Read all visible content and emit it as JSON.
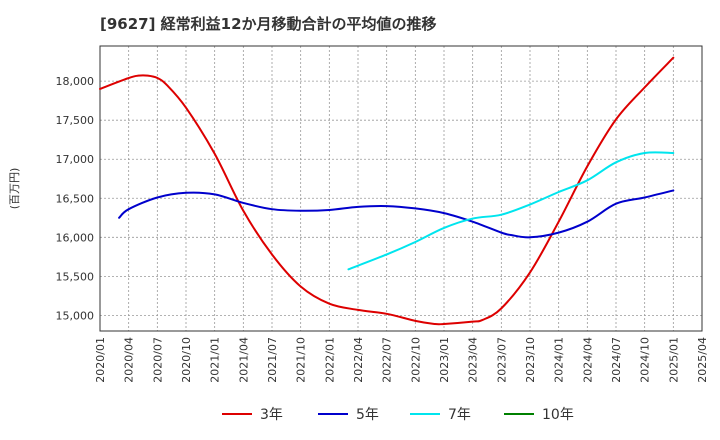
{
  "chart_data": {
    "type": "line",
    "title": "[9627]  経常利益12か月移動合計の平均値の推移",
    "ylabel": "(百万円)",
    "xlabel": "",
    "ylim": [
      14800,
      18450
    ],
    "yticks": [
      15000,
      15500,
      16000,
      16500,
      17000,
      17500,
      18000
    ],
    "ytick_labels": [
      "15,000",
      "15,500",
      "16,000",
      "16,500",
      "17,000",
      "17,500",
      "18,000"
    ],
    "xlim": [
      "2020-01",
      "2025-04"
    ],
    "xtick_labels": [
      "2020/01",
      "2020/04",
      "2020/07",
      "2020/10",
      "2021/01",
      "2021/04",
      "2021/07",
      "2021/10",
      "2022/01",
      "2022/04",
      "2022/07",
      "2022/10",
      "2023/01",
      "2023/04",
      "2023/07",
      "2023/10",
      "2024/01",
      "2024/04",
      "2024/07",
      "2024/10",
      "2025/01",
      "2025/04"
    ],
    "grid": true,
    "legend_position": "bottom",
    "series": [
      {
        "name": "3年",
        "color": "#dd0000",
        "x": [
          "2020-01",
          "2020-04",
          "2020-05",
          "2020-06",
          "2020-07",
          "2020-08",
          "2020-10",
          "2021-01",
          "2021-04",
          "2021-07",
          "2021-10",
          "2022-01",
          "2022-04",
          "2022-07",
          "2022-10",
          "2022-12",
          "2023-01",
          "2023-04",
          "2023-05",
          "2023-07",
          "2023-10",
          "2024-01",
          "2024-04",
          "2024-07",
          "2024-10",
          "2025-01"
        ],
        "values": [
          17900,
          18040,
          18070,
          18070,
          18040,
          17950,
          17660,
          17070,
          16340,
          15780,
          15370,
          15150,
          15070,
          15020,
          14930,
          14890,
          14890,
          14920,
          14940,
          15090,
          15550,
          16200,
          16910,
          17510,
          17920,
          18300
        ]
      },
      {
        "name": "5年",
        "color": "#0000cc",
        "x": [
          "2020-03",
          "2020-04",
          "2020-07",
          "2020-10",
          "2021-01",
          "2021-04",
          "2021-07",
          "2021-10",
          "2022-01",
          "2022-04",
          "2022-07",
          "2022-10",
          "2023-01",
          "2023-04",
          "2023-07",
          "2023-08",
          "2023-10",
          "2024-01",
          "2024-04",
          "2024-07",
          "2024-10",
          "2025-01"
        ],
        "values": [
          16250,
          16360,
          16510,
          16570,
          16550,
          16440,
          16360,
          16340,
          16350,
          16390,
          16400,
          16370,
          16310,
          16200,
          16060,
          16030,
          16000,
          16060,
          16200,
          16430,
          16510,
          16600
        ]
      },
      {
        "name": "7年",
        "color": "#00e5ee",
        "x": [
          "2022-03",
          "2022-07",
          "2022-10",
          "2023-01",
          "2023-04",
          "2023-07",
          "2023-10",
          "2024-01",
          "2024-04",
          "2024-07",
          "2024-10",
          "2025-01"
        ],
        "values": [
          15590,
          15780,
          15940,
          16120,
          16240,
          16290,
          16420,
          16580,
          16730,
          16960,
          17080,
          17080
        ]
      },
      {
        "name": "10年",
        "color": "#008000",
        "x": [],
        "values": []
      }
    ]
  }
}
